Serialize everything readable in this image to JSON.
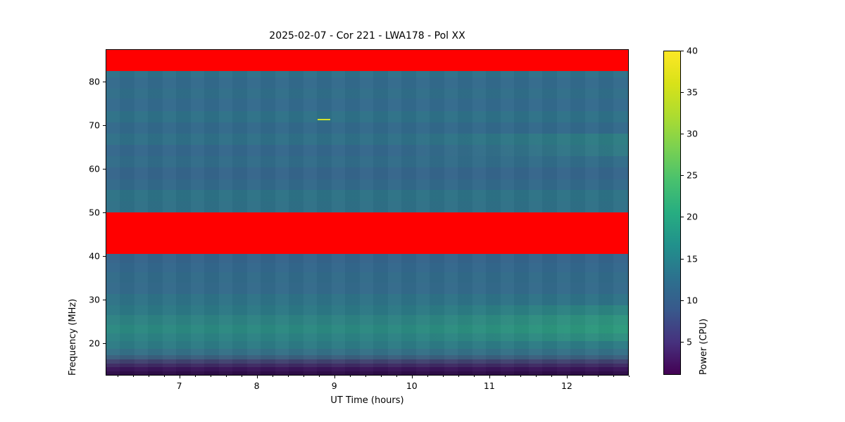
{
  "figure": {
    "background": "#ffffff",
    "title": "2025-02-07 - Cor 221 - LWA178 - Pol XX"
  },
  "chart_data": {
    "type": "heatmap",
    "title": "2025-02-07 - Cor 221 - LWA178 - Pol XX",
    "xlabel": "UT Time (hours)",
    "ylabel": "Frequency (MHz)",
    "colorbar_label": "Power (CPU)",
    "colormap": "viridis",
    "x_range": [
      6.05,
      12.8
    ],
    "y_range": [
      12.6,
      87.4
    ],
    "x_ticks": [
      7,
      8,
      9,
      10,
      11,
      12
    ],
    "x_minor_tick_step": 0.2,
    "y_ticks": [
      20,
      30,
      40,
      50,
      60,
      70,
      80
    ],
    "colorbar_ticks": [
      40,
      35,
      30,
      25,
      20,
      15,
      10,
      5
    ],
    "colorbar_range": [
      1,
      40
    ],
    "viridis_stops": [
      "#fde725",
      "#d8e219",
      "#addc30",
      "#7ad151",
      "#48c16e",
      "#27ad81",
      "#21918c",
      "#2c728e",
      "#38598c",
      "#46327e",
      "#440154"
    ],
    "flagged_band_color": "#ff0000",
    "flagged_bands": [
      {
        "freq_top": 87.4,
        "freq_bottom": 82.6,
        "note": "RFI-flagged band"
      },
      {
        "freq_top": 50.0,
        "freq_bottom": 40.5,
        "note": "RFI-flagged band"
      }
    ],
    "rows": [
      {
        "f0": 87.4,
        "f1": 82.6,
        "flagged": true,
        "color": "#ff0000",
        "power": null
      },
      {
        "f0": 82.6,
        "f1": 81.2,
        "flagged": false,
        "color": "#2e7189",
        "power": 18.0
      },
      {
        "f0": 81.2,
        "f1": 78.6,
        "flagged": false,
        "color": "#336a8c",
        "power": 16.5
      },
      {
        "f0": 78.6,
        "f1": 76.2,
        "flagged": false,
        "color": "#306e89",
        "power": 17.5
      },
      {
        "f0": 76.2,
        "f1": 73.4,
        "flagged": false,
        "color": "#336a8d",
        "power": 16.5
      },
      {
        "f0": 73.4,
        "f1": 70.8,
        "flagged": false,
        "color": "#2e7188",
        "power": 18.0
      },
      {
        "f0": 70.8,
        "f1": 68.2,
        "flagged": false,
        "color": "#32698b",
        "power": 16.8
      },
      {
        "f0": 68.2,
        "f1": 65.6,
        "flagged": false,
        "color": "#2f7088",
        "color_right": "#2d7d83",
        "power": 18.0
      },
      {
        "f0": 65.6,
        "f1": 63.0,
        "flagged": false,
        "color": "#34678c",
        "color_right": "#2f7a85",
        "power": 16.0
      },
      {
        "f0": 63.0,
        "f1": 60.4,
        "flagged": false,
        "color": "#316c89",
        "power": 17.3
      },
      {
        "f0": 60.4,
        "f1": 57.6,
        "flagged": false,
        "color": "#35658b",
        "power": 15.6
      },
      {
        "f0": 57.6,
        "f1": 55.2,
        "flagged": false,
        "color": "#32698a",
        "power": 16.8
      },
      {
        "f0": 55.2,
        "f1": 52.6,
        "flagged": false,
        "color": "#2d7286",
        "power": 18.2
      },
      {
        "f0": 52.6,
        "f1": 50.0,
        "flagged": false,
        "color": "#2f7087",
        "power": 17.8
      },
      {
        "f0": 50.0,
        "f1": 40.5,
        "flagged": true,
        "color": "#ff0000",
        "power": null
      },
      {
        "f0": 40.5,
        "f1": 38.4,
        "flagged": false,
        "color": "#35648b",
        "power": 15.4
      },
      {
        "f0": 38.4,
        "f1": 36.2,
        "flagged": false,
        "color": "#33678c",
        "power": 16.2
      },
      {
        "f0": 36.2,
        "f1": 33.8,
        "flagged": false,
        "color": "#316b89",
        "power": 17.0
      },
      {
        "f0": 33.8,
        "f1": 31.2,
        "flagged": false,
        "color": "#336a8b",
        "power": 16.6
      },
      {
        "f0": 31.2,
        "f1": 28.6,
        "flagged": false,
        "color": "#2e7287",
        "power": 18.2
      },
      {
        "f0": 28.6,
        "f1": 26.4,
        "flagged": false,
        "color": "#2c7885",
        "color_right": "#2c8581",
        "power": 19.5
      },
      {
        "f0": 26.4,
        "f1": 24.2,
        "flagged": false,
        "color": "#2d8283",
        "color_right": "#2e947e",
        "power": 21.0
      },
      {
        "f0": 24.2,
        "f1": 22.2,
        "flagged": false,
        "color": "#2b8981",
        "color_right": "#2d9a7c",
        "power": 22.0
      },
      {
        "f0": 22.2,
        "f1": 20.4,
        "flagged": false,
        "color": "#2c8284",
        "color_right": "#2e8f80",
        "power": 21.0
      },
      {
        "f0": 20.4,
        "f1": 18.6,
        "flagged": false,
        "color": "#2d7b85",
        "power": 19.5
      },
      {
        "f0": 18.6,
        "f1": 17.2,
        "flagged": false,
        "color": "#347087",
        "power": 17.5
      },
      {
        "f0": 17.2,
        "f1": 16.2,
        "flagged": false,
        "color": "#3a5f7e",
        "power": 14.0
      },
      {
        "f0": 16.2,
        "f1": 15.3,
        "flagged": false,
        "color": "#40426f",
        "power": 10.0
      },
      {
        "f0": 15.3,
        "f1": 14.4,
        "flagged": false,
        "color": "#3e2a63",
        "power": 6.5
      },
      {
        "f0": 14.4,
        "f1": 13.5,
        "flagged": false,
        "color": "#381457",
        "power": 3.5
      },
      {
        "f0": 13.5,
        "f1": 12.6,
        "flagged": false,
        "color": "#2e0d49",
        "power": 2.0
      }
    ],
    "artifact": {
      "time_start": 8.78,
      "time_end": 8.95,
      "freq": 71.6,
      "power": 37,
      "color": "#d4e22b",
      "note": "bright narrowband burst"
    }
  }
}
